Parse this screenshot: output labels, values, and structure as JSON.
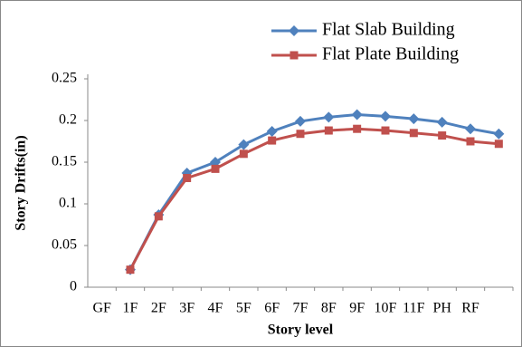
{
  "chart_data": {
    "type": "line",
    "x_label": "Story level",
    "y_label": "Story Drifts(in)",
    "categories": [
      "GF",
      "1F",
      "2F",
      "3F",
      "4F",
      "5F",
      "6F",
      "7F",
      "8F",
      "9F",
      "10F",
      "11F",
      "PH",
      "RF",
      null
    ],
    "series": [
      {
        "name": "Flat Slab Building",
        "color": "#4f81bd",
        "marker": "diamond",
        "values": [
          null,
          0.021,
          0.087,
          0.137,
          0.15,
          0.171,
          0.187,
          0.199,
          0.204,
          0.207,
          0.205,
          0.202,
          0.198,
          0.19,
          0.184
        ]
      },
      {
        "name": "Flat Plate Building",
        "color": "#c0504d",
        "marker": "square",
        "values": [
          null,
          0.021,
          0.085,
          0.131,
          0.142,
          0.16,
          0.176,
          0.184,
          0.188,
          0.19,
          0.188,
          0.185,
          0.182,
          0.175,
          0.172
        ]
      }
    ],
    "ylim": [
      0,
      0.25
    ],
    "yticks": [
      0,
      0.05,
      0.1,
      0.15,
      0.2,
      0.25
    ],
    "grid": false,
    "legend": "top-right"
  }
}
